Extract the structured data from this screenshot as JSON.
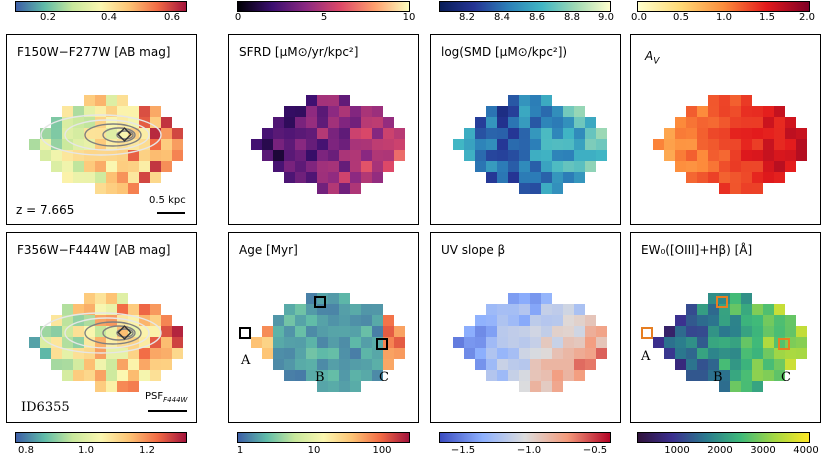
{
  "colorbars_top": [
    {
      "ticks": [
        "0.2",
        "0.4",
        "0.6"
      ],
      "colors": [
        "#3d5fa7",
        "#5fbba8",
        "#c8e89c",
        "#fbf7b0",
        "#fdc374",
        "#f26b45",
        "#a3133c"
      ]
    },
    {
      "ticks": [
        "0",
        "5",
        "10"
      ],
      "colors": [
        "#000004",
        "#3b0f70",
        "#8c2981",
        "#de4968",
        "#fe9f6d",
        "#fcfdbf"
      ]
    },
    {
      "ticks": [
        "8.2",
        "8.4",
        "8.6",
        "8.8",
        "9.0"
      ],
      "colors": [
        "#081d58",
        "#253494",
        "#2c7fb8",
        "#41b6c4",
        "#a1dab4",
        "#ffffcc"
      ]
    },
    {
      "ticks": [
        "0.0",
        "0.5",
        "1.0",
        "1.5",
        "2.0"
      ],
      "colors": [
        "#ffffcc",
        "#fed976",
        "#fd8d3c",
        "#e31a1c",
        "#800026"
      ]
    }
  ],
  "colorbars_bottom": [
    {
      "ticks": [
        "0.8",
        "1.0",
        "1.2"
      ],
      "colors": [
        "#3d5fa7",
        "#5fbba8",
        "#c8e89c",
        "#fbf7b0",
        "#fdc374",
        "#f26b45",
        "#a3133c"
      ]
    },
    {
      "ticks": [
        "1",
        "10",
        "100"
      ],
      "colors": [
        "#3d5fa7",
        "#5fbba8",
        "#c8e89c",
        "#fbf7b0",
        "#fdc374",
        "#f26b45",
        "#a3133c"
      ]
    },
    {
      "ticks": [
        "−1.5",
        "−1.0",
        "−0.5"
      ],
      "colors": [
        "#3b4cc0",
        "#8db0fe",
        "#dddddd",
        "#f49a7b",
        "#b40426"
      ]
    },
    {
      "ticks": [
        "1000",
        "2000",
        "3000",
        "4000"
      ],
      "colors": [
        "#30123b",
        "#3b2f8f",
        "#2a7b8e",
        "#3eb97a",
        "#a5d843",
        "#fde725"
      ]
    }
  ],
  "panels": {
    "p1": {
      "title": "F150W−F277W [AB mag]",
      "redshift": "z = 7.665",
      "scalebar": "0.5 kpc"
    },
    "p2": {
      "title": "SFRD [μM⊙/yr/kpc²]"
    },
    "p3": {
      "title": "log(SMD [μM⊙/kpc²])"
    },
    "p4": {
      "title": "A_V",
      "title_main": "A",
      "title_sub": "V"
    },
    "p5": {
      "title": "F356W−F444W [AB mag]",
      "id": "ID6355",
      "psf_main": "PSF",
      "psf_sub": "F444W"
    },
    "p6": {
      "title": "Age [Myr]",
      "markers": [
        "A",
        "B",
        "C"
      ]
    },
    "p7": {
      "title": "UV slope β"
    },
    "p8": {
      "title": "EW₀([OIII]+Hβ) [Å]",
      "markers": [
        "A",
        "B",
        "C"
      ]
    }
  }
}
